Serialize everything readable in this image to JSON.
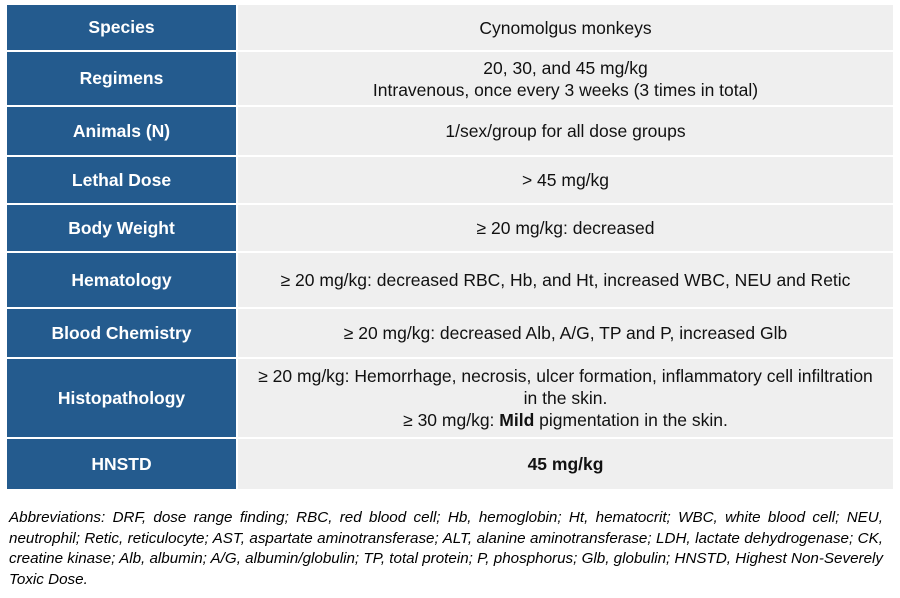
{
  "table": {
    "rows": [
      {
        "label": "Species",
        "lines": [
          "Cynomolgus monkeys"
        ]
      },
      {
        "label": "Regimens",
        "lines": [
          "20, 30, and 45 mg/kg",
          "Intravenous, once every 3 weeks (3 times in total)"
        ]
      },
      {
        "label": "Animals (N)",
        "lines": [
          "1/sex/group for all dose groups"
        ]
      },
      {
        "label": "Lethal Dose",
        "lines": [
          "> 45 mg/kg"
        ]
      },
      {
        "label": "Body Weight",
        "lines": [
          "≥ 20 mg/kg: decreased"
        ]
      },
      {
        "label": "Hematology",
        "lines": [
          "≥ 20 mg/kg: decreased RBC, Hb, and Ht, increased WBC, NEU and Retic"
        ]
      },
      {
        "label": "Blood Chemistry",
        "lines": [
          "≥ 20 mg/kg: decreased Alb, A/G, TP and P, increased Glb"
        ]
      },
      {
        "label": "Histopathology",
        "lines": [
          "≥ 20 mg/kg: Hemorrhage, necrosis, ulcer formation, inflammatory cell infiltration in the skin.",
          [
            {
              "text": "≥ 30 mg/kg: ",
              "bold": false
            },
            {
              "text": "Mild",
              "bold": true
            },
            {
              "text": " pigmentation in the skin.",
              "bold": false
            }
          ]
        ]
      },
      {
        "label": "HNSTD",
        "lines": [
          [
            {
              "text": "45 mg/kg",
              "bold": true
            }
          ]
        ]
      }
    ]
  },
  "footnote": "Abbreviations: DRF, dose range finding; RBC, red blood cell; Hb, hemoglobin; Ht, hematocrit; WBC, white blood cell; NEU, neutrophil; Retic, reticulocyte; AST, aspartate aminotransferase; ALT, alanine aminotransferase; LDH, lactate dehydrogenase; CK, creatine kinase; Alb, albumin; A/G, albumin/globulin; TP, total protein; P, phosphorus; Glb, globulin; HNSTD, Highest Non-Severely Toxic Dose."
}
